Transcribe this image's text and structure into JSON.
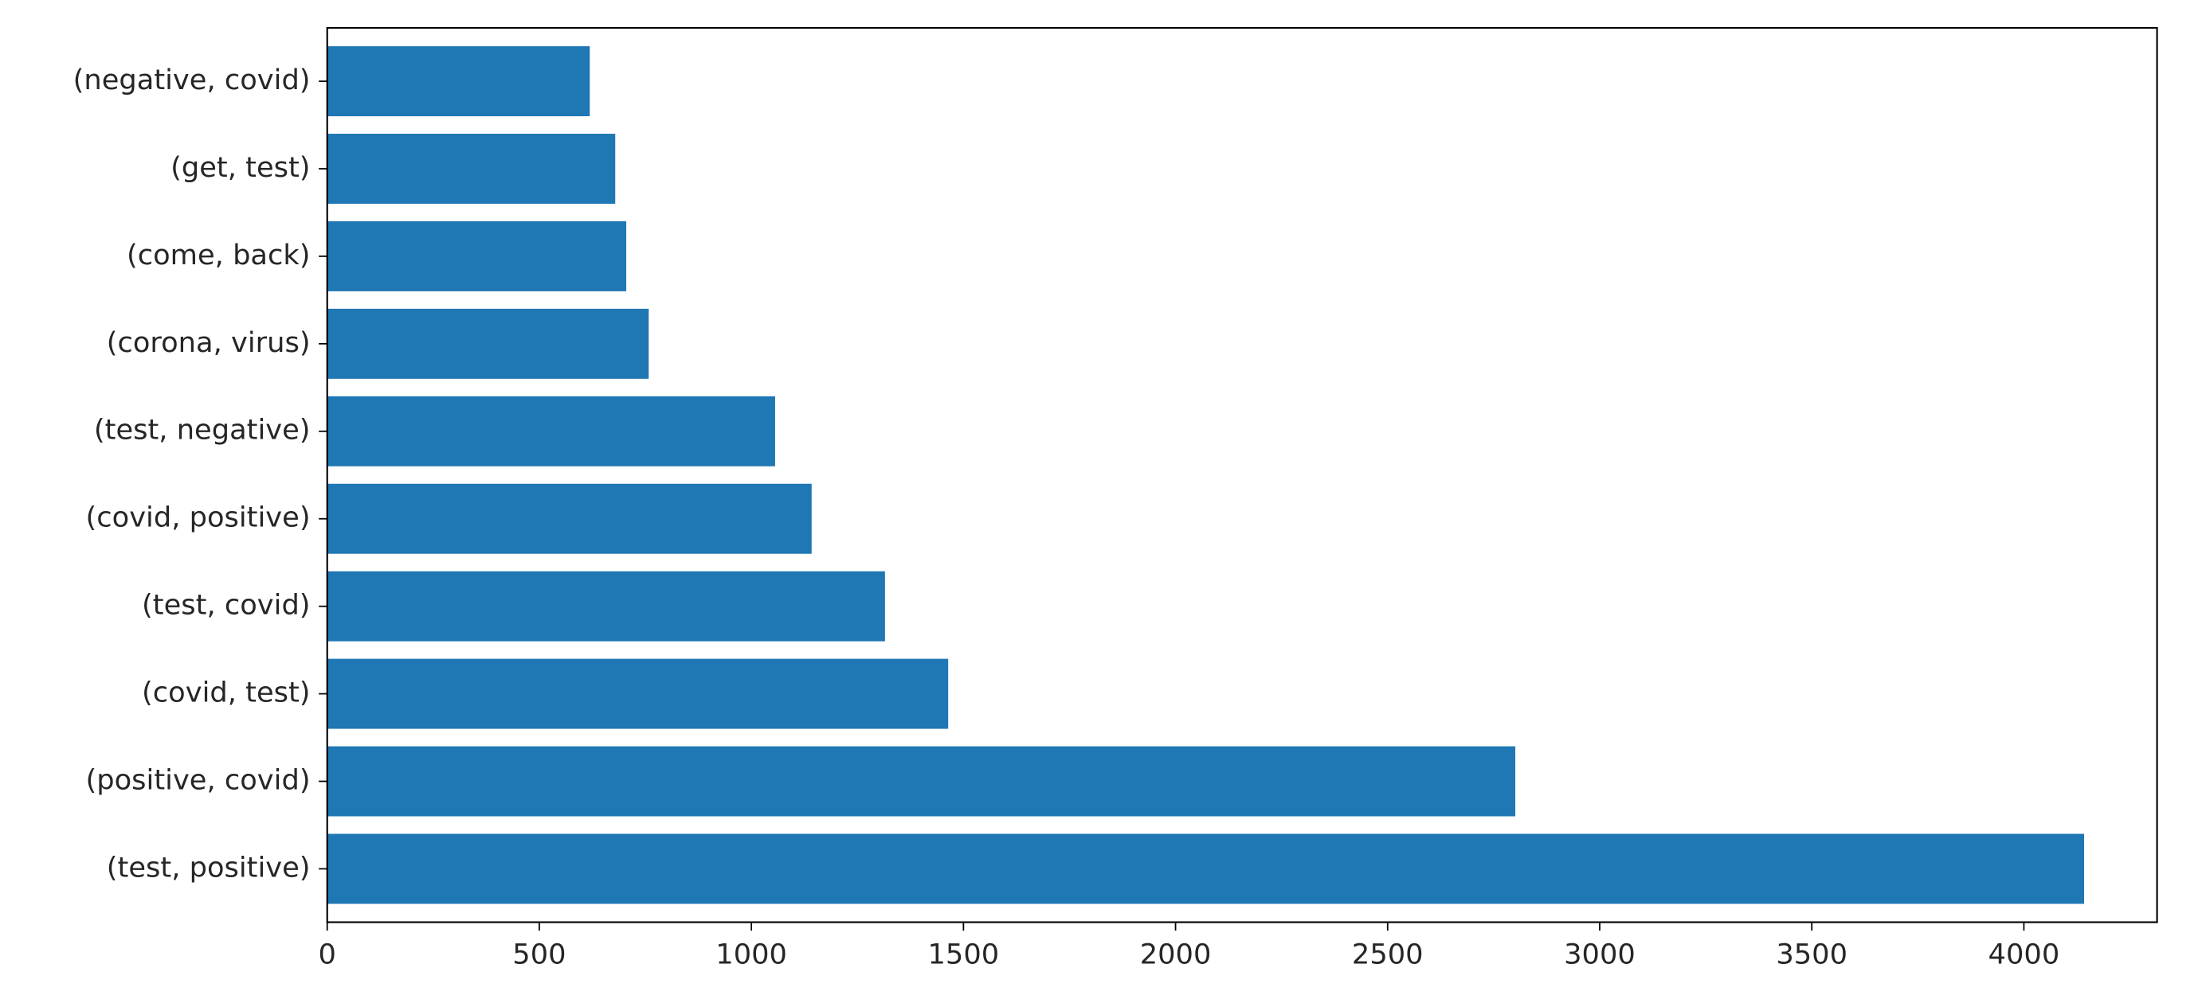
{
  "chart_data": {
    "type": "barh",
    "categories": [
      "(test, positive)",
      "(positive, covid)",
      "(covid, test)",
      "(test, covid)",
      "(covid, positive)",
      "(test, negative)",
      "(corona, virus)",
      "(come, back)",
      "(get, test)",
      "(negative, covid)"
    ],
    "values": [
      4142,
      2801,
      1464,
      1315,
      1142,
      1056,
      758,
      705,
      679,
      619
    ],
    "color": "#1f77b4",
    "xlim": [
      0,
      4314
    ],
    "xticks": [
      0,
      500,
      1000,
      1500,
      2000,
      2500,
      3000,
      3500,
      4000
    ]
  }
}
